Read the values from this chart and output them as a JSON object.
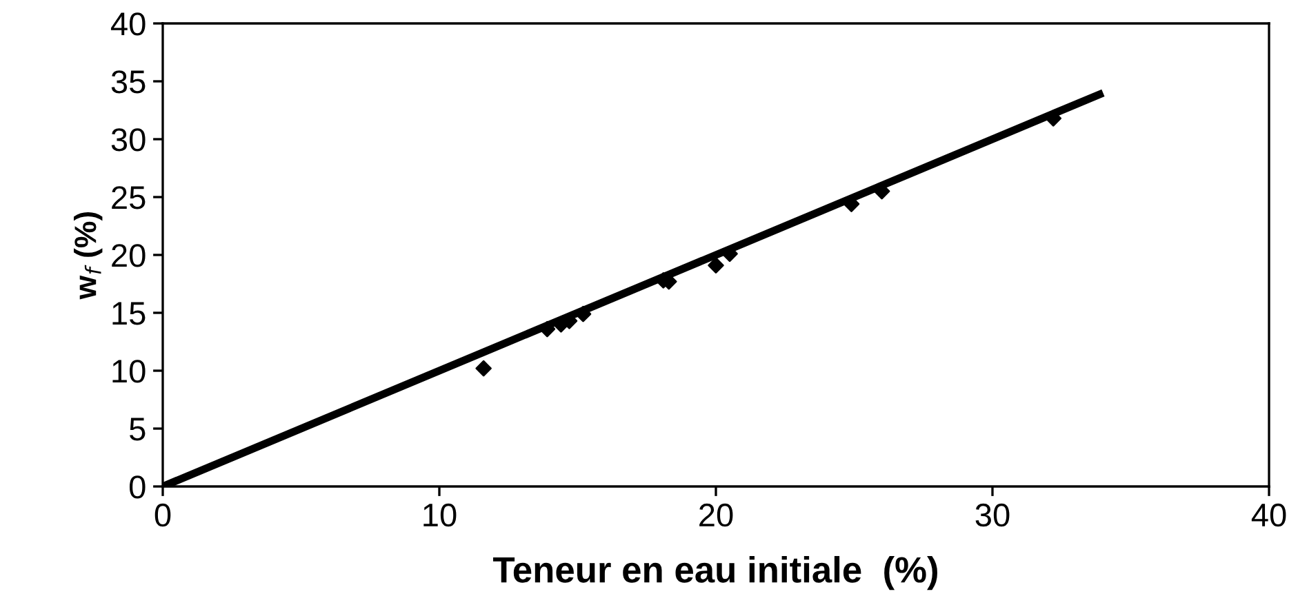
{
  "chart_data": {
    "type": "scatter",
    "xlabel": "Teneur en eau initiale  (%)",
    "ylabel": "w$_{f}$ (%)",
    "xlim": [
      0,
      40
    ],
    "xticks": [
      0,
      10,
      20,
      30,
      40
    ],
    "ylim": [
      0,
      40
    ],
    "yticks": [
      0,
      5,
      10,
      15,
      20,
      25,
      30,
      35,
      40
    ],
    "grid": false,
    "legend": false,
    "series": [
      {
        "color": "#000000",
        "marker": "diamond",
        "x": [
          11.6,
          13.9,
          14.4,
          14.7,
          15.2,
          18.1,
          18.3,
          20.0,
          20.5,
          24.9,
          26.0,
          32.2
        ],
        "values": [
          10.2,
          13.6,
          14.0,
          14.3,
          14.9,
          17.8,
          17.7,
          19.1,
          20.1,
          24.4,
          25.5,
          31.8
        ]
      },
      {
        "type": "line",
        "color": "#000000",
        "marker": "none",
        "line_style": "solid",
        "x": [
          0,
          34
        ],
        "values": [
          0,
          34
        ]
      }
    ]
  }
}
